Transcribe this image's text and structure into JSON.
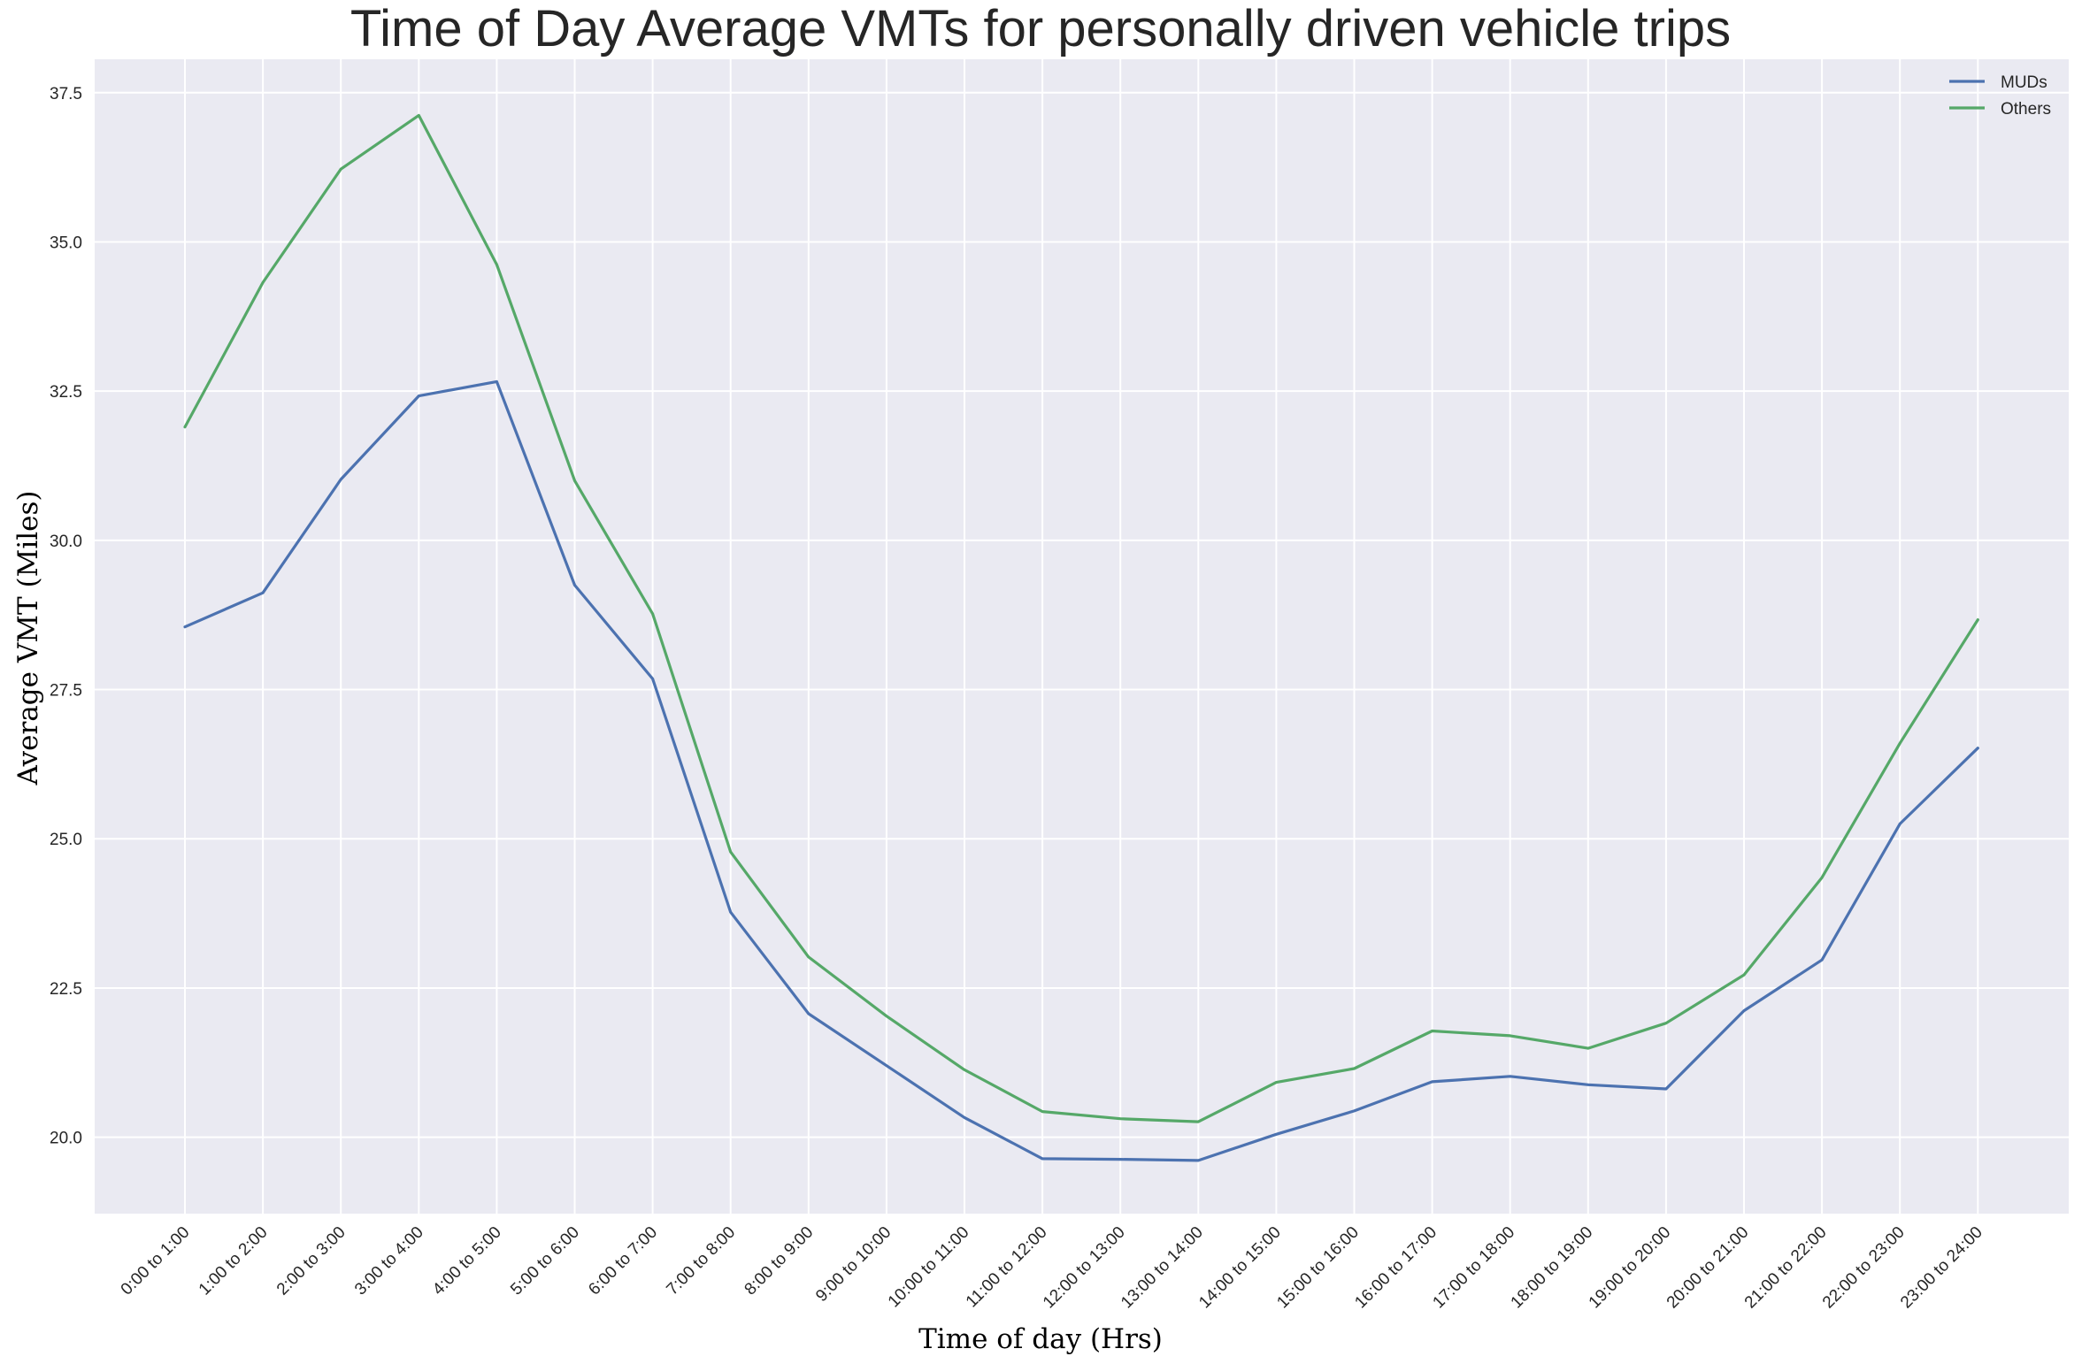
{
  "chart_data": {
    "type": "line",
    "title": "Time of Day Average VMTs for personally driven vehicle trips",
    "xlabel": "Time of day (Hrs)",
    "ylabel": "Average VMT (Miles)",
    "categories": [
      "0:00 to 1:00",
      "1:00 to 2:00",
      "2:00 to 3:00",
      "3:00 to 4:00",
      "4:00 to 5:00",
      "5:00 to 6:00",
      "6:00 to 7:00",
      "7:00 to 8:00",
      "8:00 to 9:00",
      "9:00 to 10:00",
      "10:00 to 11:00",
      "11:00 to 12:00",
      "12:00 to 13:00",
      "13:00 to 14:00",
      "14:00 to 15:00",
      "15:00 to 16:00",
      "16:00 to 17:00",
      "17:00 to 18:00",
      "18:00 to 19:00",
      "19:00 to 20:00",
      "20:00 to 21:00",
      "21:00 to 22:00",
      "22:00 to 23:00",
      "23:00 to 24:00"
    ],
    "series": [
      {
        "name": "MUDs",
        "color": "#4c72b0",
        "values": [
          28.55,
          29.12,
          31.02,
          32.42,
          32.66,
          29.25,
          27.68,
          23.77,
          22.07,
          21.2,
          20.33,
          19.64,
          19.63,
          19.61,
          20.05,
          20.44,
          20.93,
          21.02,
          20.88,
          20.81,
          22.12,
          22.97,
          25.25,
          26.52
        ]
      },
      {
        "name": "Others",
        "color": "#55a868",
        "values": [
          31.9,
          34.32,
          36.22,
          37.12,
          34.62,
          31.0,
          28.77,
          24.78,
          23.02,
          22.03,
          21.13,
          20.43,
          20.31,
          20.26,
          20.92,
          21.15,
          21.78,
          21.7,
          21.49,
          21.91,
          22.72,
          24.35,
          26.6,
          28.67
        ]
      }
    ],
    "ylim": [
      18.72,
      38.06
    ],
    "yticks": [
      20.0,
      22.5,
      25.0,
      27.5,
      30.0,
      32.5,
      35.0,
      37.5
    ],
    "grid": true,
    "legend": "top-right",
    "style": {
      "background": "#eaeaf2",
      "grid_color": "#ffffff"
    }
  }
}
